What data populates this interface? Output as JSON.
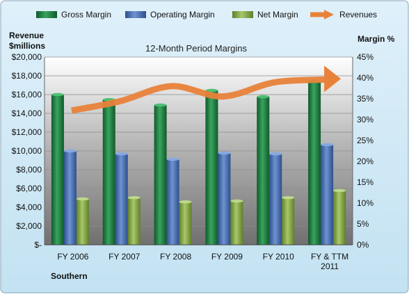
{
  "chart_data": {
    "type": "bar",
    "title": "12-Month Period Margins",
    "categories": [
      "FY 2006",
      "FY 2007",
      "FY 2008",
      "FY 2009",
      "FY 2010",
      "FY & TTM 2011"
    ],
    "series": [
      {
        "name": "Gross Margin",
        "axis": "right",
        "values": [
          36.0,
          34.8,
          33.5,
          37.0,
          35.5,
          39.2
        ]
      },
      {
        "name": "Operating Margin",
        "axis": "right",
        "values": [
          22.5,
          21.8,
          20.5,
          22.0,
          21.8,
          24.0
        ]
      },
      {
        "name": "Net Margin",
        "axis": "right",
        "values": [
          11.0,
          11.3,
          10.3,
          10.5,
          11.3,
          13.0
        ]
      },
      {
        "name": "Revenues",
        "axis": "left",
        "type": "line",
        "values": [
          14300,
          15300,
          16900,
          15800,
          17300,
          17600
        ]
      }
    ],
    "ylabel_left": [
      "Revenue",
      "$millions"
    ],
    "ylabel_right": "Margin %",
    "ylim_left": [
      0,
      20000
    ],
    "ylim_right": [
      0,
      45
    ],
    "yticks_left": [
      "$-",
      "$2,000",
      "$4,000",
      "$6,000",
      "$8,000",
      "$10,000",
      "$12,000",
      "$14,000",
      "$16,000",
      "$18,000",
      "$20,000"
    ],
    "yticks_right": [
      "0%",
      "5%",
      "10%",
      "15%",
      "20%",
      "25%",
      "30%",
      "35%",
      "40%",
      "45%"
    ],
    "xtick_labels": [
      [
        "FY 2006"
      ],
      [
        "FY 2007"
      ],
      [
        "FY 2008"
      ],
      [
        "FY 2009"
      ],
      [
        "FY 2010"
      ],
      [
        "FY & TTM",
        "2011"
      ]
    ],
    "grid": true,
    "legend": "top",
    "company": "Southern",
    "colors": {
      "gross": "#1f7a3e",
      "operating": "#4a6fb0",
      "net": "#8aab4a",
      "revenue": "#e8823a",
      "background": "#cfe8f5"
    }
  }
}
